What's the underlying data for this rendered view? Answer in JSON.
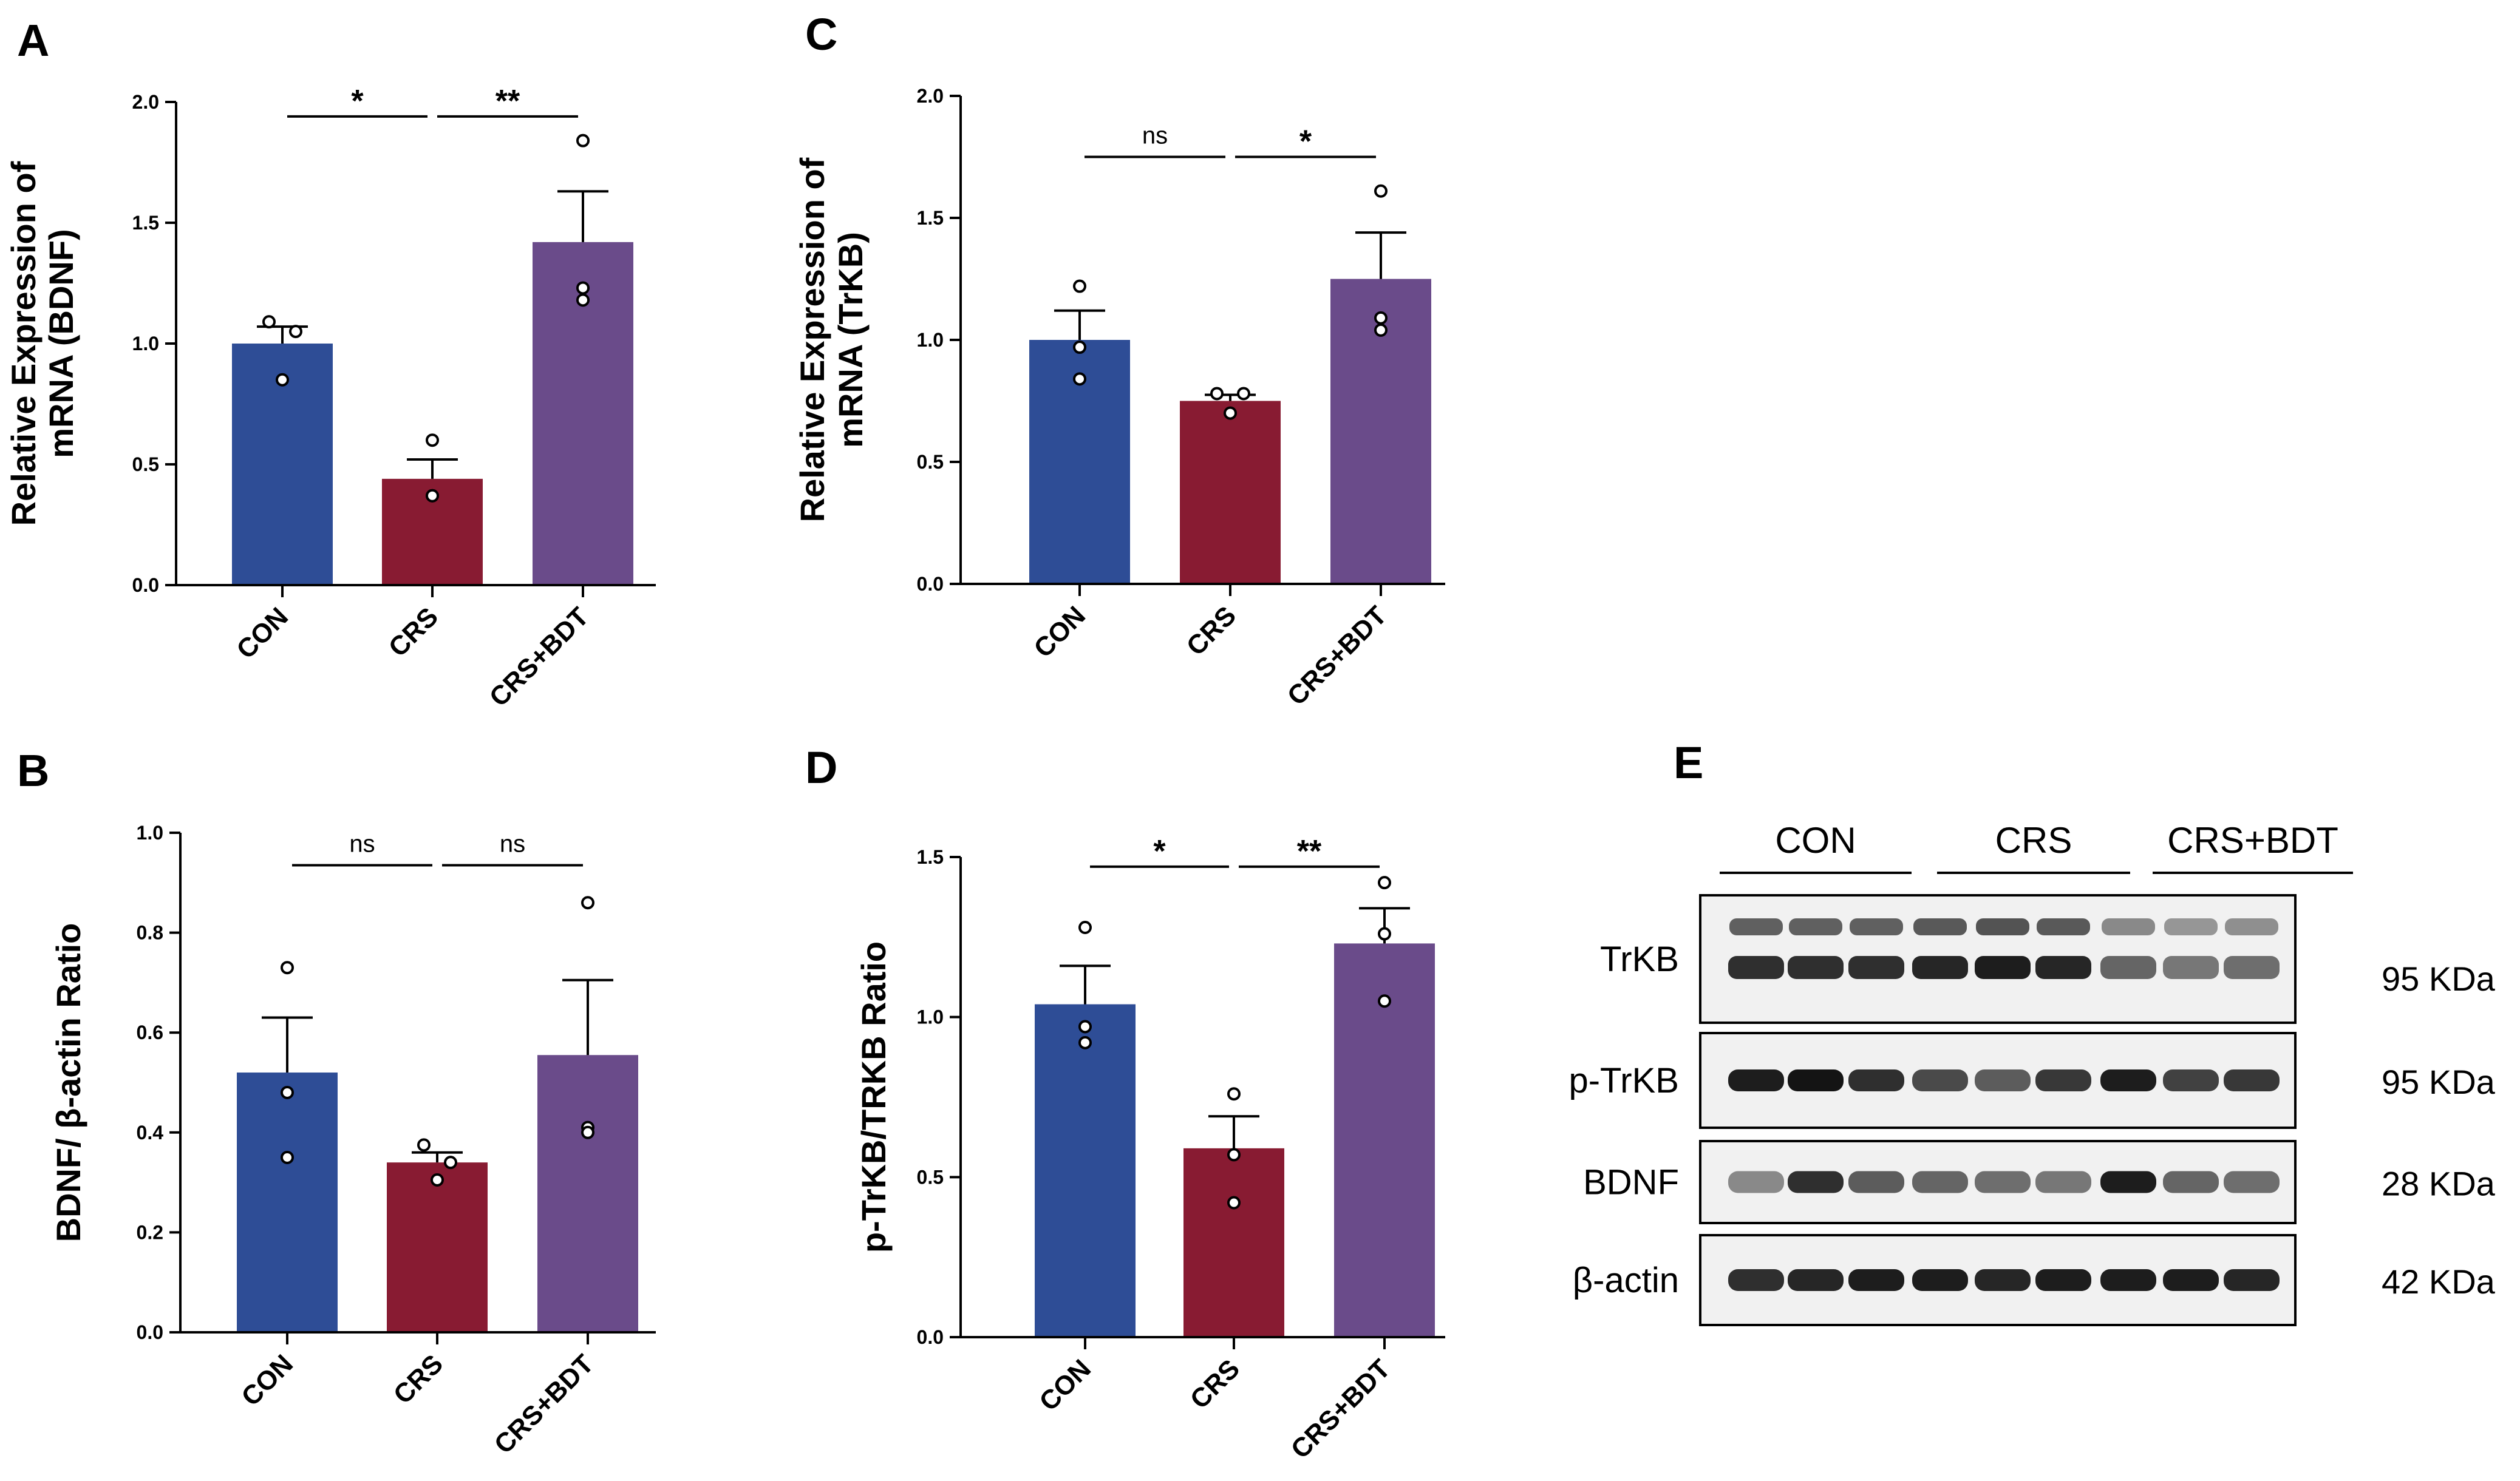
{
  "colors": {
    "CON": "#2e4d96",
    "CRS": "#881b32",
    "CRS+BDT": "#6a4b8a"
  },
  "chart_data": [
    {
      "panel": "A",
      "type": "bar",
      "ylabel_lines": [
        "Relative Expression of",
        "mRNA (BDNF)"
      ],
      "categories": [
        "CON",
        "CRS",
        "CRS+BDT"
      ],
      "values": [
        1.0,
        0.44,
        1.42
      ],
      "errors": [
        0.07,
        0.08,
        0.21
      ],
      "points": [
        [
          1.09,
          1.05,
          0.85
        ],
        [
          0.6,
          0.37,
          0.37
        ],
        [
          1.84,
          1.18,
          1.23
        ]
      ],
      "ylim": [
        0,
        2.0
      ],
      "yticks": [
        0.0,
        0.5,
        1.0,
        1.5,
        2.0
      ],
      "ytick_labels": [
        "0.0",
        "0.5",
        "1.0",
        "1.5",
        "2.0"
      ],
      "comparisons": [
        {
          "from": 0,
          "to": 1,
          "label": "*",
          "y": 1.94
        },
        {
          "from": 1,
          "to": 2,
          "label": "**",
          "y": 1.94
        }
      ]
    },
    {
      "panel": "B",
      "type": "bar",
      "ylabel_lines": [
        "BDNF/ β-actin Ratio"
      ],
      "categories": [
        "CON",
        "CRS",
        "CRS+BDT"
      ],
      "values": [
        0.52,
        0.34,
        0.555
      ],
      "errors": [
        0.11,
        0.02,
        0.15
      ],
      "points": [
        [
          0.73,
          0.48,
          0.35
        ],
        [
          0.375,
          0.34,
          0.305
        ],
        [
          0.86,
          0.41,
          0.4
        ]
      ],
      "ylim": [
        0,
        1.0
      ],
      "yticks": [
        0.0,
        0.2,
        0.4,
        0.6,
        0.8,
        1.0
      ],
      "ytick_labels": [
        "0.0",
        "0.2",
        "0.4",
        "0.6",
        "0.8",
        "1.0"
      ],
      "comparisons": [
        {
          "from": 0,
          "to": 1,
          "label": "ns",
          "y": 0.935
        },
        {
          "from": 1,
          "to": 2,
          "label": "ns",
          "y": 0.935
        }
      ]
    },
    {
      "panel": "C",
      "type": "bar",
      "ylabel_lines": [
        "Relative Expression of",
        "mRNA (TrKB)"
      ],
      "categories": [
        "CON",
        "CRS",
        "CRS+BDT"
      ],
      "values": [
        1.0,
        0.75,
        1.25
      ],
      "errors": [
        0.12,
        0.025,
        0.19
      ],
      "points": [
        [
          1.22,
          0.97,
          0.84
        ],
        [
          0.78,
          0.78,
          0.7
        ],
        [
          1.61,
          1.09,
          1.04
        ]
      ],
      "ylim": [
        0,
        2.0
      ],
      "yticks": [
        0.0,
        0.5,
        1.0,
        1.5,
        2.0
      ],
      "ytick_labels": [
        "0.0",
        "0.5",
        "1.0",
        "1.5",
        "2.0"
      ],
      "comparisons": [
        {
          "from": 0,
          "to": 1,
          "label": "ns",
          "y": 1.75
        },
        {
          "from": 1,
          "to": 2,
          "label": "*",
          "y": 1.75
        }
      ]
    },
    {
      "panel": "D",
      "type": "bar",
      "ylabel_lines": [
        "p-TrKB/TRKB Ratio"
      ],
      "categories": [
        "CON",
        "CRS",
        "CRS+BDT"
      ],
      "values": [
        1.04,
        0.59,
        1.23
      ],
      "errors": [
        0.12,
        0.1,
        0.11
      ],
      "points": [
        [
          1.28,
          0.97,
          0.92
        ],
        [
          0.76,
          0.57,
          0.42
        ],
        [
          1.42,
          1.26,
          1.05
        ]
      ],
      "ylim": [
        0,
        1.5
      ],
      "yticks": [
        0.0,
        0.5,
        1.0,
        1.5
      ],
      "ytick_labels": [
        "0.0",
        "0.5",
        "1.0",
        "1.5"
      ],
      "comparisons": [
        {
          "from": 0,
          "to": 1,
          "label": "*",
          "y": 1.47
        },
        {
          "from": 1,
          "to": 2,
          "label": "**",
          "y": 1.47
        }
      ]
    }
  ],
  "blot": {
    "panel": "E",
    "groups": [
      "CON",
      "CRS",
      "CRS+BDT"
    ],
    "rows": [
      {
        "label": "TrKB",
        "kda": "95 KDa",
        "intensity": [
          0.85,
          0.85,
          0.85,
          0.9,
          0.95,
          0.9,
          0.55,
          0.45,
          0.5
        ]
      },
      {
        "label": "p-TrKB",
        "kda": "95 KDa",
        "intensity": [
          0.95,
          1.0,
          0.85,
          0.7,
          0.6,
          0.8,
          0.95,
          0.75,
          0.8
        ]
      },
      {
        "label": "BDNF",
        "kda": "28 KDa",
        "intensity": [
          0.35,
          0.85,
          0.6,
          0.55,
          0.5,
          0.45,
          0.95,
          0.55,
          0.5
        ]
      },
      {
        "label": "β-actin",
        "kda": "42 KDa",
        "intensity": [
          0.85,
          0.9,
          0.95,
          0.95,
          0.9,
          0.95,
          0.95,
          0.95,
          0.9
        ]
      }
    ]
  }
}
